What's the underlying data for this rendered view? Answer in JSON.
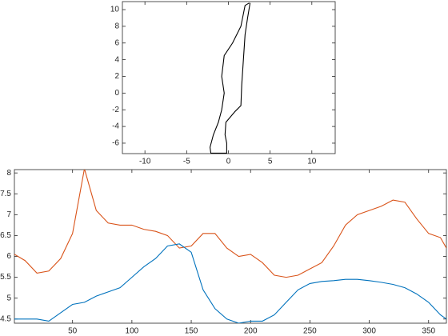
{
  "chart_data": [
    {
      "type": "line",
      "x": [
        2.5,
        2.0,
        1.5,
        0.5,
        -0.5,
        -0.8,
        -0.5,
        -0.8,
        -1.2,
        -1.8,
        -2.2,
        -2.1,
        -0.2,
        -0.2,
        -0.4,
        -0.3,
        0.8,
        1.5,
        1.6,
        1.8,
        2.0,
        2.3,
        2.6
      ],
      "series": [
        {
          "color": "#000000",
          "values": [
            10.8,
            10.5,
            8,
            6,
            4.5,
            2,
            0,
            -2,
            -3.5,
            -5,
            -6.5,
            -7.2,
            -7.2,
            -6,
            -5,
            -3.5,
            -2.2,
            -1.5,
            1,
            4,
            7,
            9,
            10.8
          ]
        }
      ],
      "xlim": [
        -12.7,
        12.8
      ],
      "xticks": [
        -10,
        -5,
        0,
        5,
        10
      ],
      "ylim": [
        -7.25,
        10.96
      ],
      "yticks": [
        -6,
        -4,
        -2,
        0,
        2,
        4,
        6,
        8,
        10
      ]
    },
    {
      "type": "line",
      "x": [
        1,
        10,
        20,
        30,
        40,
        50,
        60,
        70,
        80,
        90,
        100,
        110,
        120,
        130,
        140,
        150,
        160,
        170,
        180,
        190,
        200,
        210,
        220,
        230,
        240,
        250,
        260,
        270,
        280,
        290,
        300,
        310,
        320,
        330,
        340,
        350,
        360,
        365
      ],
      "series": [
        {
          "color": "#d95319",
          "values": [
            6.05,
            5.9,
            5.6,
            5.65,
            5.95,
            6.55,
            8.1,
            7.1,
            6.8,
            6.75,
            6.75,
            6.65,
            6.6,
            6.5,
            6.2,
            6.25,
            6.55,
            6.55,
            6.2,
            6.0,
            6.05,
            5.85,
            5.55,
            5.5,
            5.55,
            5.7,
            5.85,
            6.25,
            6.75,
            7.0,
            7.1,
            7.2,
            7.35,
            7.3,
            6.9,
            6.55,
            6.45,
            6.2
          ]
        },
        {
          "color": "#0072bd",
          "values": [
            4.5,
            4.5,
            4.5,
            4.45,
            4.65,
            4.85,
            4.9,
            5.05,
            5.15,
            5.25,
            5.5,
            5.75,
            5.95,
            6.25,
            6.3,
            6.1,
            5.2,
            4.75,
            4.5,
            4.4,
            4.45,
            4.45,
            4.6,
            4.9,
            5.2,
            5.35,
            5.4,
            5.42,
            5.45,
            5.45,
            5.42,
            5.38,
            5.33,
            5.25,
            5.1,
            4.9,
            4.6,
            4.5
          ]
        }
      ],
      "xlim": [
        1,
        365
      ],
      "xticks": [
        50,
        100,
        150,
        200,
        250,
        300,
        350
      ],
      "ylim": [
        4.4,
        8.08
      ],
      "yticks": [
        4.5,
        5,
        5.5,
        6,
        6.5,
        7,
        7.5,
        8
      ]
    }
  ]
}
